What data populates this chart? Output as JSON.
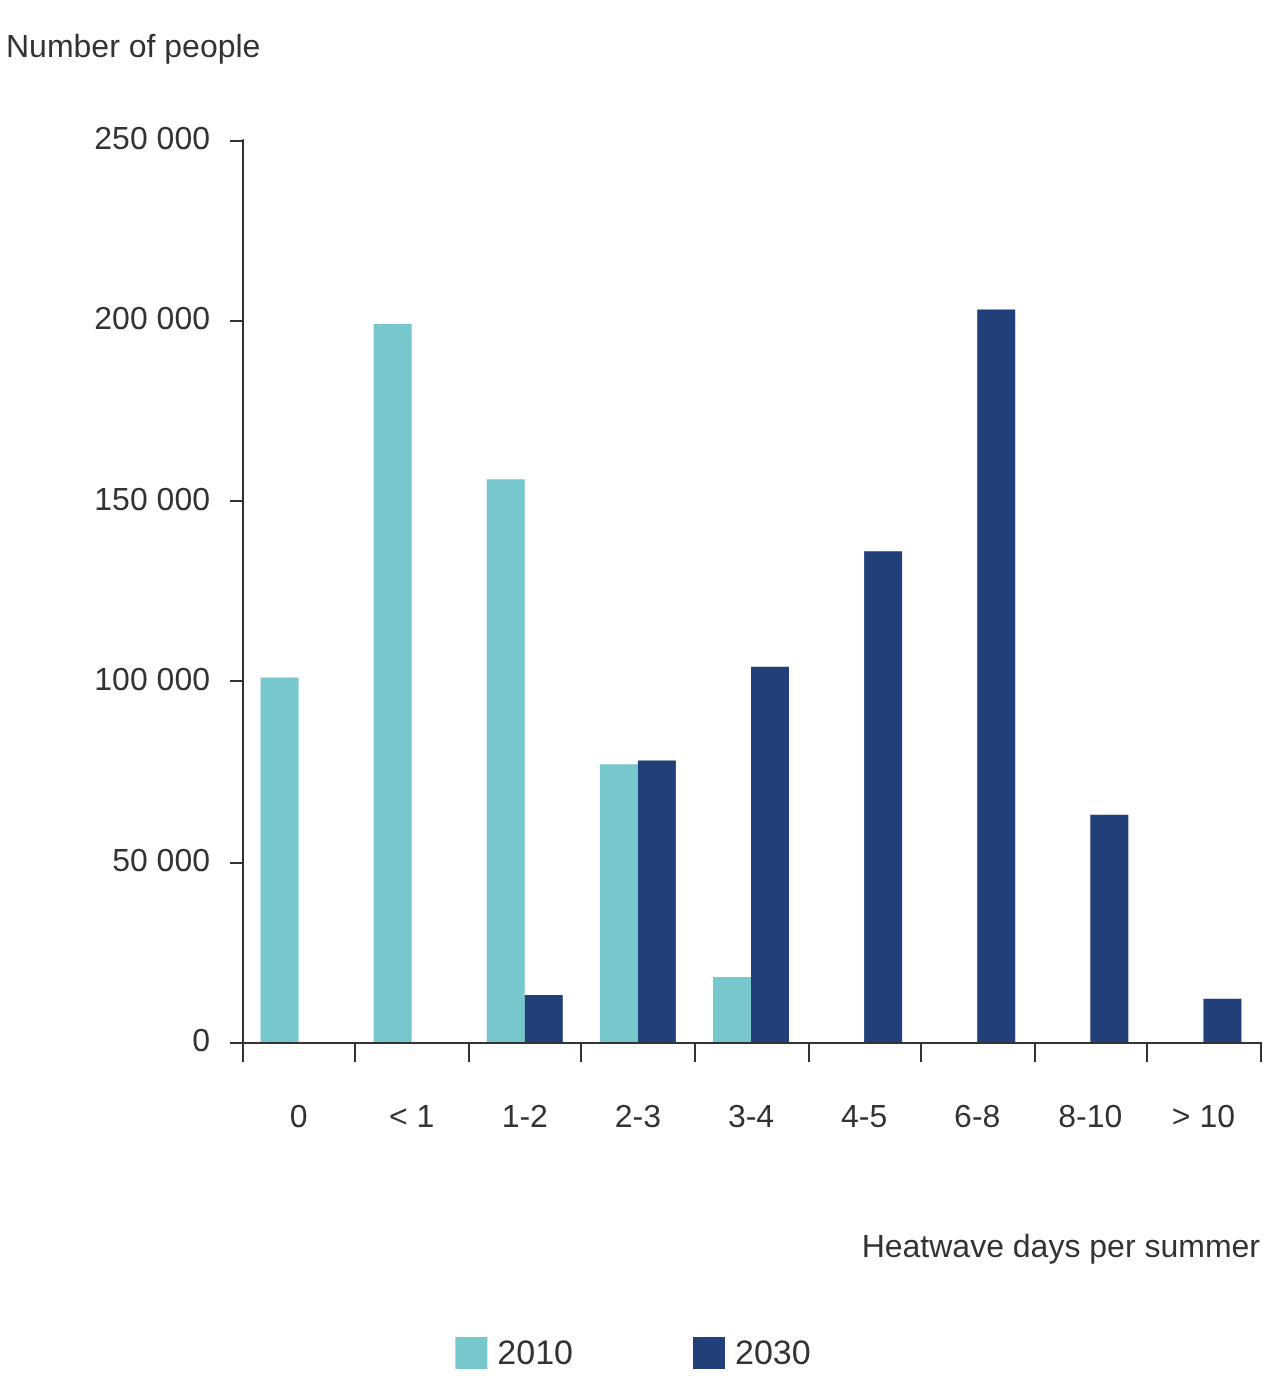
{
  "chart_data": {
    "type": "bar",
    "ylabel": "Number of people",
    "xlabel": "Heatwave days per summer",
    "categories": [
      "0",
      "< 1",
      "1-2",
      "2-3",
      "3-4",
      "4-5",
      "6-8",
      "8-10",
      "> 10"
    ],
    "series": [
      {
        "name": "2010",
        "color": "#76c8cc",
        "values": [
          101000,
          199000,
          156000,
          77000,
          18000,
          null,
          null,
          null,
          null
        ]
      },
      {
        "name": "2030",
        "color": "#21407a",
        "values": [
          null,
          null,
          13000,
          78000,
          104000,
          136000,
          203000,
          63000,
          12000
        ]
      }
    ],
    "ylim": [
      0,
      250000
    ],
    "yticks": [
      {
        "value": 0,
        "label": "0"
      },
      {
        "value": 50000,
        "label": "50 000"
      },
      {
        "value": 100000,
        "label": "100 000"
      },
      {
        "value": 150000,
        "label": "150 000"
      },
      {
        "value": 200000,
        "label": "200 000"
      },
      {
        "value": 250000,
        "label": "250 000"
      }
    ],
    "grid": false,
    "legend": "bottom"
  }
}
